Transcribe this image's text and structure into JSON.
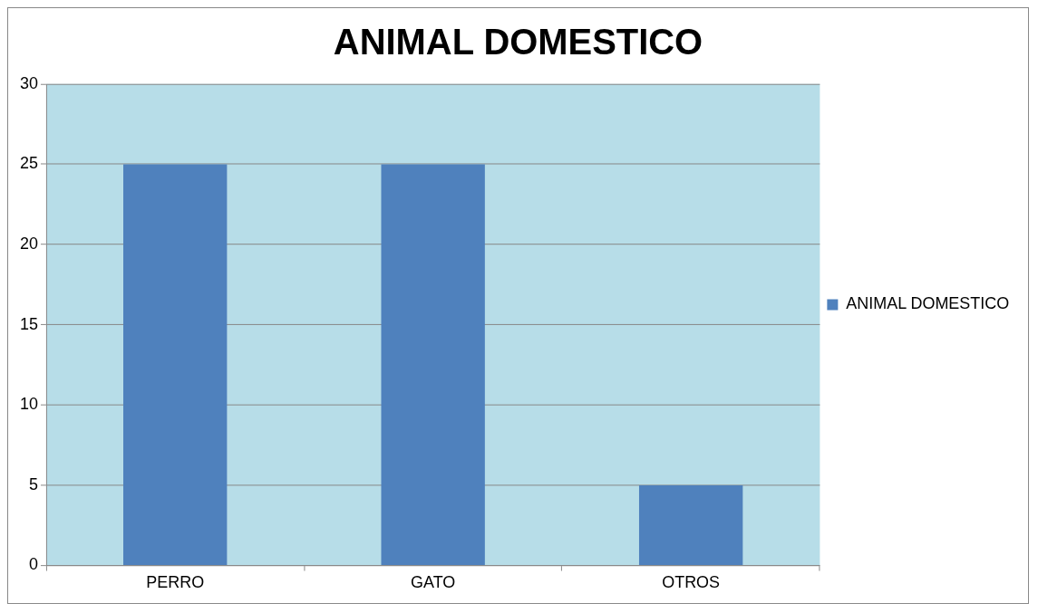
{
  "chart_data": {
    "type": "bar",
    "title": "ANIMAL DOMESTICO",
    "categories": [
      "PERRO",
      "GATO",
      "OTROS"
    ],
    "series": [
      {
        "name": "ANIMAL DOMESTICO",
        "color": "#4f81bd",
        "values": [
          25,
          25,
          5
        ]
      }
    ],
    "ylim": [
      0,
      30
    ],
    "yticks": [
      0,
      5,
      10,
      15,
      20,
      25,
      30
    ],
    "grid": "y",
    "legend": "right"
  }
}
